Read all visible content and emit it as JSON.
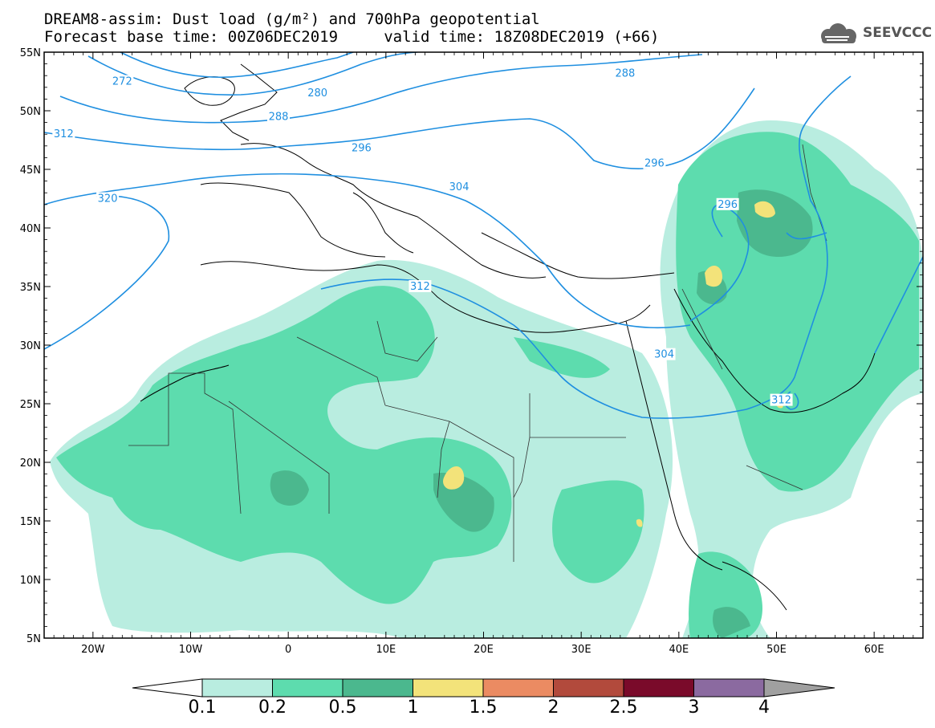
{
  "header": {
    "line1": "DREAM8-assim: Dust load (g/m²) and 700hPa geopotential",
    "line2": "Forecast base time: 00Z06DEC2019     valid time: 18Z08DEC2019 (+66)"
  },
  "logo": {
    "text": "SEEVCCC",
    "icon": "cloud-icon"
  },
  "axes": {
    "lat_labels": [
      "55N",
      "50N",
      "45N",
      "40N",
      "35N",
      "30N",
      "25N",
      "20N",
      "15N",
      "10N",
      "5N"
    ],
    "lat_values": [
      55,
      50,
      45,
      40,
      35,
      30,
      25,
      20,
      15,
      10,
      5
    ],
    "lon_labels": [
      "20W",
      "10W",
      "0",
      "10E",
      "20E",
      "30E",
      "40E",
      "50E",
      "60E"
    ],
    "lon_values": [
      -20,
      -10,
      0,
      10,
      20,
      30,
      40,
      50,
      60
    ],
    "lon_range": [
      -25,
      65
    ],
    "lat_range": [
      5,
      55
    ]
  },
  "contours": {
    "color": "#1f8fe0",
    "labels": [
      {
        "text": "272",
        "lon": -17,
        "lat": 52.5
      },
      {
        "text": "280",
        "lon": 3,
        "lat": 51.5
      },
      {
        "text": "288",
        "lon": -1,
        "lat": 49.5
      },
      {
        "text": "288",
        "lon": 34.5,
        "lat": 53.2
      },
      {
        "text": "296",
        "lon": 7.5,
        "lat": 46.8
      },
      {
        "text": "296",
        "lon": 37.5,
        "lat": 45.5
      },
      {
        "text": "296",
        "lon": 45,
        "lat": 42
      },
      {
        "text": "304",
        "lon": 17.5,
        "lat": 43.5
      },
      {
        "text": "304",
        "lon": 38.5,
        "lat": 29.2
      },
      {
        "text": "312",
        "lon": -23,
        "lat": 48
      },
      {
        "text": "312",
        "lon": 13.5,
        "lat": 35
      },
      {
        "text": "312",
        "lon": 50.5,
        "lat": 25.3
      },
      {
        "text": "320",
        "lon": -18.5,
        "lat": 42.5
      }
    ]
  },
  "colorbar": {
    "ticks": [
      "0.1",
      "0.2",
      "0.5",
      "1",
      "1.5",
      "2",
      "2.5",
      "3",
      "4"
    ],
    "colors": [
      "#ffffff",
      "#b9ede0",
      "#5ddcae",
      "#4bb88e",
      "#f3e37a",
      "#eb8b62",
      "#b24a3c",
      "#7a0a2a",
      "#8b6aa0",
      "#a0a0a0"
    ]
  }
}
